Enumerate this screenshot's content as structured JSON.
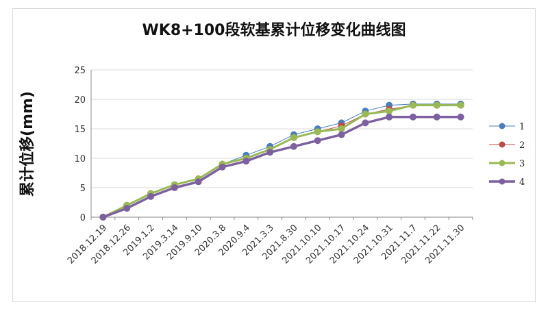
{
  "chart_data": {
    "type": "line",
    "title": "WK8+100段软基累计位移变化曲线图",
    "ylabel": "累计位移(mm)",
    "xlabel": "",
    "ylim": [
      0,
      25
    ],
    "yticks": [
      0,
      5,
      10,
      15,
      20,
      25
    ],
    "grid": true,
    "legend_position": "right",
    "categories": [
      "2018.12.19",
      "2018.12.26",
      "2019.1.2",
      "2019.3.14",
      "2019.9.10",
      "2020.3.8",
      "2020.9.4",
      "2021.3.3",
      "2021.8.30",
      "2021.10.10",
      "2021.10.17",
      "2021.10.24",
      "2021.10.31",
      "2021.11.7",
      "2021.11.22",
      "2021.11.30"
    ],
    "series": [
      {
        "name": "1",
        "color": "#4a7ebb",
        "width": 1,
        "values": [
          0,
          2,
          4,
          5.5,
          6.5,
          9,
          10.5,
          12,
          14,
          15,
          16,
          18,
          19,
          19.2,
          19.2,
          19.2
        ]
      },
      {
        "name": "2",
        "color": "#be4b48",
        "width": 1,
        "values": [
          0,
          2,
          4,
          5.5,
          6.5,
          9,
          10,
          11.5,
          13.5,
          14.5,
          15.5,
          17.5,
          18.3,
          19,
          19,
          19
        ]
      },
      {
        "name": "3",
        "color": "#98b954",
        "width": 3,
        "values": [
          0,
          2,
          4,
          5.5,
          6.5,
          9,
          10,
          11.5,
          13.5,
          14.5,
          15,
          17.5,
          18,
          19,
          19,
          19
        ]
      },
      {
        "name": "4",
        "color": "#7d60a0",
        "width": 3.5,
        "values": [
          0,
          1.5,
          3.5,
          5,
          6,
          8.5,
          9.5,
          11,
          12,
          13,
          14,
          16,
          17,
          17,
          17,
          17
        ]
      }
    ]
  }
}
